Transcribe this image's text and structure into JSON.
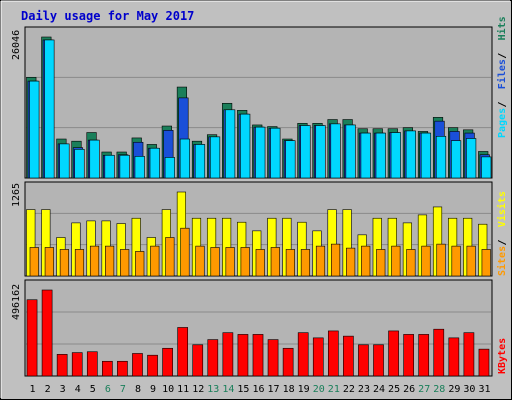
{
  "title": "Daily usage for May 2017",
  "colors": {
    "background": "#c0c0c0",
    "plot_bg": "#b4b4b4",
    "title": "#0000cc",
    "hits": "#1a7f5a",
    "files": "#1a4fd8",
    "pages": "#00d8ff",
    "visits": "#ffff00",
    "sites": "#ff9900",
    "kbytes": "#ff0000",
    "weekend_label": "#1a7f5a",
    "weekday_label": "#000000"
  },
  "chart_data": [
    {
      "type": "bar",
      "name": "hits-files-pages",
      "legend": [
        "Pages",
        "Files",
        "Hits"
      ],
      "ymax_label": "26046",
      "ylim": [
        0,
        26046
      ],
      "categories": [
        "1",
        "2",
        "3",
        "4",
        "5",
        "6",
        "7",
        "8",
        "9",
        "10",
        "11",
        "12",
        "13",
        "14",
        "15",
        "16",
        "17",
        "18",
        "19",
        "20",
        "21",
        "22",
        "23",
        "24",
        "25",
        "26",
        "27",
        "28",
        "29",
        "30",
        "31"
      ],
      "series": [
        {
          "name": "Hits",
          "values": [
            18600,
            26046,
            7200,
            6800,
            8400,
            4800,
            4800,
            7400,
            6200,
            9600,
            16800,
            6800,
            8000,
            13800,
            12500,
            9800,
            9500,
            7200,
            10100,
            10100,
            10800,
            10800,
            9100,
            9100,
            9100,
            9300,
            8600,
            11200,
            9300,
            8900,
            4900
          ]
        },
        {
          "name": "Files",
          "values": [
            17900,
            25500,
            6300,
            5600,
            7000,
            4200,
            4300,
            6600,
            5500,
            8800,
            14800,
            6200,
            7600,
            12600,
            11800,
            9400,
            9200,
            6900,
            9700,
            9700,
            10000,
            9800,
            8300,
            8300,
            8400,
            8700,
            8300,
            10500,
            8600,
            8300,
            4300
          ]
        },
        {
          "name": "Pages",
          "values": [
            17900,
            25500,
            6300,
            5300,
            7000,
            4200,
            4200,
            4000,
            5500,
            3800,
            7200,
            6200,
            7600,
            12600,
            11800,
            9400,
            9200,
            6900,
            9700,
            9700,
            10000,
            9800,
            8300,
            8300,
            8400,
            8700,
            8300,
            7700,
            6900,
            7300,
            3900
          ]
        }
      ]
    },
    {
      "type": "bar",
      "name": "visits-sites",
      "legend": [
        "Sites",
        "Visits"
      ],
      "ymax_label": "1265",
      "ylim": [
        0,
        1265
      ],
      "series": [
        {
          "name": "Visits",
          "values": [
            1000,
            1000,
            580,
            800,
            830,
            830,
            790,
            870,
            580,
            1000,
            1265,
            870,
            870,
            870,
            810,
            680,
            870,
            870,
            810,
            680,
            1000,
            1000,
            620,
            870,
            870,
            800,
            920,
            1040,
            870,
            870,
            780
          ]
        },
        {
          "name": "Sites",
          "values": [
            430,
            430,
            400,
            400,
            450,
            450,
            400,
            370,
            450,
            580,
            720,
            450,
            430,
            430,
            430,
            400,
            430,
            400,
            400,
            450,
            480,
            420,
            450,
            400,
            450,
            400,
            450,
            480,
            450,
            450,
            400
          ]
        }
      ]
    },
    {
      "type": "bar",
      "name": "kbytes",
      "legend": [
        "KBytes"
      ],
      "ymax_label": "496162",
      "ylim": [
        0,
        496162
      ],
      "series": [
        {
          "name": "KBytes",
          "values": [
            440000,
            496162,
            125000,
            135000,
            140000,
            85000,
            85000,
            130000,
            120000,
            160000,
            280000,
            180000,
            210000,
            250000,
            240000,
            240000,
            210000,
            160000,
            250000,
            220000,
            260000,
            230000,
            180000,
            180000,
            260000,
            240000,
            240000,
            270000,
            220000,
            250000,
            155000
          ]
        }
      ]
    }
  ],
  "weekend_days": [
    6,
    7,
    13,
    14,
    20,
    21,
    27,
    28
  ]
}
